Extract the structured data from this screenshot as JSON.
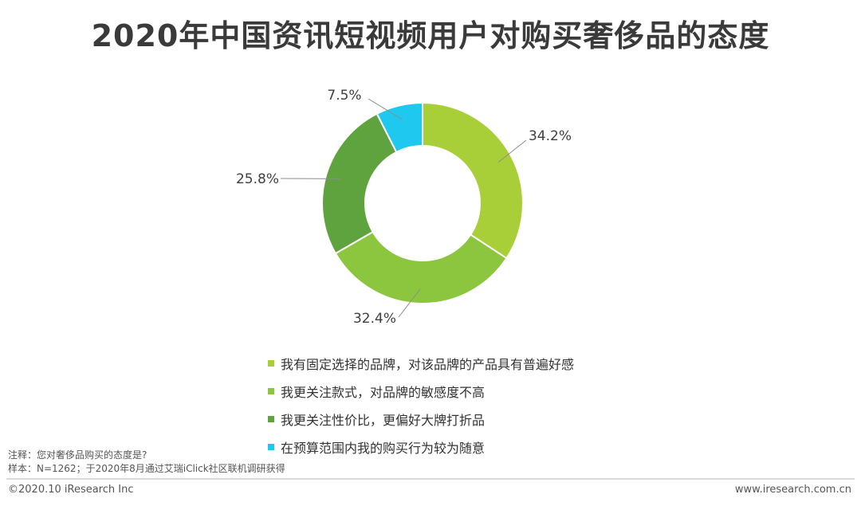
{
  "title": "2020年中国资讯短视频用户对购买奢侈品的态度",
  "chart_data": {
    "type": "donut",
    "categories": [
      "我有固定选择的品牌，对该品牌的产品具有普遍好感",
      "我更关注款式，对品牌的敏感度不高",
      "我更关注性价比，更偏好大牌打折品",
      "在预算范围内我的购买行为较为随意"
    ],
    "values": [
      34.2,
      32.4,
      25.8,
      7.5
    ],
    "labels": [
      "34.2%",
      "32.4%",
      "25.8%",
      "7.5%"
    ],
    "colors": [
      "#a9cf38",
      "#8cc63f",
      "#5fa33e",
      "#1ec8ef"
    ],
    "legend_position": "bottom"
  },
  "notes": {
    "line1": "注释：您对奢侈品购买的态度是?",
    "line2": "样本：N=1262；于2020年8月通过艾瑞iClick社区联机调研获得"
  },
  "footer": {
    "copyright": "©2020.10 iResearch Inc",
    "url": "www.iresearch.com.cn"
  }
}
